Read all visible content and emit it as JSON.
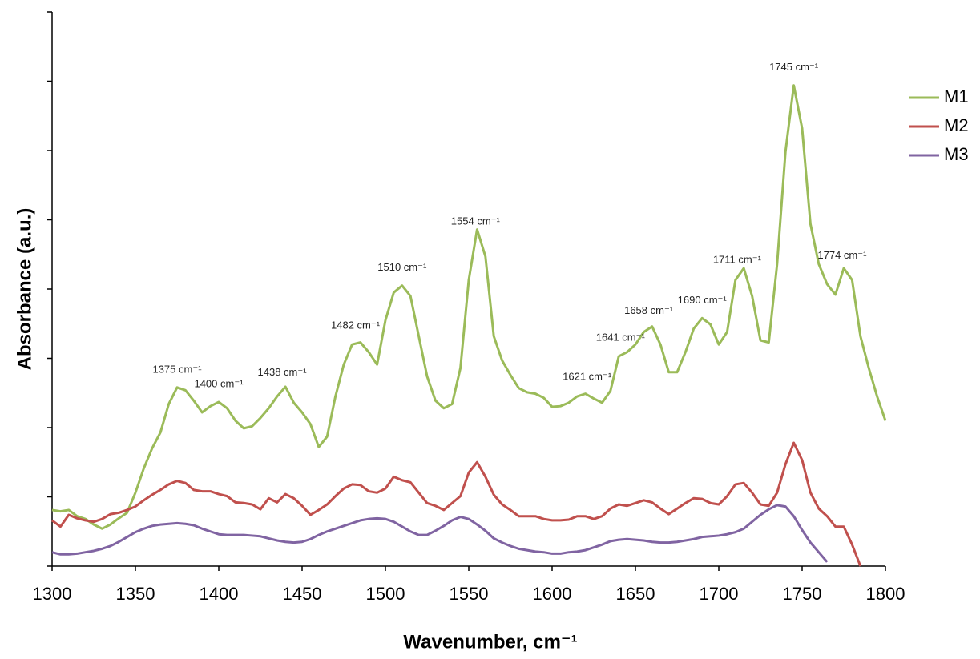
{
  "chart_data": {
    "type": "line",
    "xlabel": "Wavenumber, cm⁻¹",
    "ylabel": "Absorbance (a.u.)",
    "xlim": [
      1300,
      1800
    ],
    "xticks": [
      1300,
      1350,
      1400,
      1450,
      1500,
      1550,
      1600,
      1650,
      1700,
      1750,
      1800
    ],
    "ylim": [
      0,
      8
    ],
    "yticks": [
      0,
      1,
      2,
      3,
      4,
      5,
      6,
      7,
      8
    ],
    "legend": "right",
    "x": [
      1300,
      1305,
      1310,
      1315,
      1320,
      1325,
      1330,
      1335,
      1340,
      1345,
      1350,
      1355,
      1360,
      1365,
      1370,
      1375,
      1380,
      1385,
      1390,
      1395,
      1400,
      1405,
      1410,
      1415,
      1420,
      1425,
      1430,
      1435,
      1440,
      1445,
      1450,
      1455,
      1460,
      1465,
      1470,
      1475,
      1480,
      1485,
      1490,
      1495,
      1500,
      1505,
      1510,
      1515,
      1520,
      1525,
      1530,
      1535,
      1540,
      1545,
      1550,
      1555,
      1560,
      1565,
      1570,
      1575,
      1580,
      1585,
      1590,
      1595,
      1600,
      1605,
      1610,
      1615,
      1620,
      1625,
      1630,
      1635,
      1640,
      1645,
      1650,
      1655,
      1660,
      1665,
      1670,
      1675,
      1680,
      1685,
      1690,
      1695,
      1700,
      1705,
      1710,
      1715,
      1720,
      1725,
      1730,
      1735,
      1740,
      1745,
      1750,
      1755,
      1760,
      1765,
      1770,
      1775,
      1780,
      1785,
      1790,
      1795,
      1800
    ],
    "series": [
      {
        "name": "M1",
        "color": "#9bbb59",
        "values": [
          0.81,
          0.79,
          0.81,
          0.72,
          0.68,
          0.6,
          0.54,
          0.6,
          0.69,
          0.77,
          1.06,
          1.41,
          1.7,
          1.93,
          2.34,
          2.58,
          2.54,
          2.39,
          2.22,
          2.31,
          2.37,
          2.28,
          2.1,
          1.99,
          2.02,
          2.14,
          2.28,
          2.45,
          2.59,
          2.36,
          2.22,
          2.05,
          1.72,
          1.87,
          2.45,
          2.91,
          3.2,
          3.23,
          3.09,
          2.91,
          3.55,
          3.95,
          4.05,
          3.9,
          3.32,
          2.74,
          2.39,
          2.28,
          2.34,
          2.86,
          4.13,
          4.86,
          4.47,
          3.32,
          2.97,
          2.76,
          2.57,
          2.51,
          2.49,
          2.43,
          2.3,
          2.31,
          2.36,
          2.45,
          2.49,
          2.42,
          2.36,
          2.53,
          3.03,
          3.09,
          3.2,
          3.38,
          3.46,
          3.2,
          2.8,
          2.8,
          3.09,
          3.43,
          3.58,
          3.49,
          3.2,
          3.38,
          4.13,
          4.3,
          3.9,
          3.26,
          3.23,
          4.36,
          5.98,
          6.94,
          6.32,
          4.94,
          4.36,
          4.07,
          3.92,
          4.3,
          4.13,
          3.32,
          2.86,
          2.45,
          2.1
        ]
      },
      {
        "name": "M2",
        "color": "#c0504d",
        "values": [
          0.66,
          0.57,
          0.74,
          0.69,
          0.66,
          0.64,
          0.68,
          0.75,
          0.77,
          0.81,
          0.86,
          0.95,
          1.03,
          1.1,
          1.18,
          1.23,
          1.2,
          1.1,
          1.08,
          1.08,
          1.04,
          1.01,
          0.92,
          0.91,
          0.89,
          0.82,
          0.98,
          0.92,
          1.04,
          0.98,
          0.87,
          0.74,
          0.81,
          0.89,
          1.01,
          1.12,
          1.18,
          1.17,
          1.08,
          1.06,
          1.12,
          1.29,
          1.24,
          1.21,
          1.06,
          0.91,
          0.87,
          0.81,
          0.91,
          1.01,
          1.35,
          1.5,
          1.29,
          1.03,
          0.89,
          0.81,
          0.72,
          0.72,
          0.72,
          0.68,
          0.66,
          0.66,
          0.67,
          0.72,
          0.72,
          0.68,
          0.72,
          0.83,
          0.89,
          0.87,
          0.91,
          0.95,
          0.92,
          0.83,
          0.75,
          0.83,
          0.91,
          0.98,
          0.97,
          0.91,
          0.89,
          1.01,
          1.18,
          1.2,
          1.06,
          0.89,
          0.87,
          1.06,
          1.47,
          1.78,
          1.53,
          1.06,
          0.83,
          0.72,
          0.57,
          0.57,
          0.31,
          0,
          null,
          null,
          null
        ]
      },
      {
        "name": "M3",
        "color": "#8064a2",
        "values": [
          0.2,
          0.17,
          0.17,
          0.18,
          0.2,
          0.22,
          0.25,
          0.29,
          0.35,
          0.42,
          0.49,
          0.54,
          0.58,
          0.6,
          0.61,
          0.62,
          0.61,
          0.59,
          0.54,
          0.5,
          0.46,
          0.45,
          0.45,
          0.45,
          0.44,
          0.43,
          0.4,
          0.37,
          0.35,
          0.34,
          0.35,
          0.39,
          0.45,
          0.5,
          0.54,
          0.58,
          0.62,
          0.66,
          0.68,
          0.69,
          0.68,
          0.64,
          0.57,
          0.5,
          0.45,
          0.45,
          0.51,
          0.58,
          0.66,
          0.71,
          0.68,
          0.6,
          0.51,
          0.4,
          0.34,
          0.29,
          0.25,
          0.23,
          0.21,
          0.2,
          0.18,
          0.18,
          0.2,
          0.21,
          0.23,
          0.27,
          0.31,
          0.36,
          0.38,
          0.39,
          0.38,
          0.37,
          0.35,
          0.34,
          0.34,
          0.35,
          0.37,
          0.39,
          0.42,
          0.43,
          0.44,
          0.46,
          0.49,
          0.54,
          0.64,
          0.74,
          0.82,
          0.88,
          0.86,
          0.72,
          0.52,
          0.34,
          0.2,
          0.06,
          null,
          null,
          null,
          null,
          null,
          null,
          null
        ]
      }
    ],
    "annotations": [
      {
        "label": "1375 cm⁻¹",
        "x": 1375
      },
      {
        "label": "1400 cm⁻¹",
        "x": 1400
      },
      {
        "label": "1438 cm⁻¹",
        "x": 1438
      },
      {
        "label": "1482 cm⁻¹",
        "x": 1482
      },
      {
        "label": "1510 cm⁻¹",
        "x": 1510
      },
      {
        "label": "1554 cm⁻¹",
        "x": 1554
      },
      {
        "label": "1621 cm⁻¹",
        "x": 1621
      },
      {
        "label": "1641 cm⁻¹",
        "x": 1641
      },
      {
        "label": "1658 cm⁻¹",
        "x": 1658
      },
      {
        "label": "1690 cm⁻¹",
        "x": 1690
      },
      {
        "label": "1711 cm⁻¹",
        "x": 1711
      },
      {
        "label": "1745 cm⁻¹",
        "x": 1745
      },
      {
        "label": "1774 cm⁻¹",
        "x": 1774
      }
    ]
  }
}
